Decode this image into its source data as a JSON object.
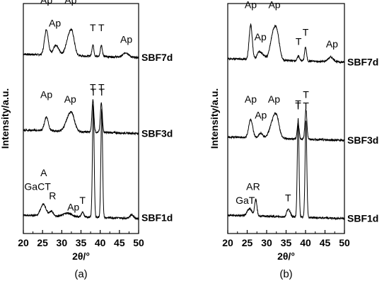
{
  "chart_data": [
    {
      "type": "line",
      "panel_label": "(a)",
      "xlabel": "2θ/°",
      "ylabel": "Intensity/a.u.",
      "xlim": [
        20,
        50
      ],
      "xticks": [
        "20",
        "25",
        "30",
        "35",
        "40",
        "45",
        "50"
      ],
      "grid": false,
      "series": [
        {
          "name": "SBF7d",
          "baseline": 0.78,
          "peaks": [
            [
              26.0,
              0.11,
              0.5
            ],
            [
              28.2,
              0.03,
              0.6
            ],
            [
              29.0,
              0.02,
              0.6
            ],
            [
              31.9,
              0.08,
              0.8
            ],
            [
              32.8,
              0.06,
              0.6
            ],
            [
              38.1,
              0.05,
              0.25
            ],
            [
              40.3,
              0.05,
              0.25
            ],
            [
              46.7,
              0.02,
              0.7
            ]
          ],
          "labels": [
            {
              "text": "Ap",
              "x": 26.0,
              "above": 0.22
            },
            {
              "text": "Ap",
              "x": 28.2,
              "above": 0.12
            },
            {
              "text": "Ap",
              "x": 32.3,
              "above": 0.22
            },
            {
              "text": "T",
              "x": 38.1,
              "above": 0.1
            },
            {
              "text": "T",
              "x": 40.3,
              "above": 0.1
            },
            {
              "text": "Ap",
              "x": 46.8,
              "above": 0.05
            }
          ]
        },
        {
          "name": "SBF3d",
          "baseline": 0.45,
          "peaks": [
            [
              26.0,
              0.06,
              0.5
            ],
            [
              31.9,
              0.06,
              0.9
            ],
            [
              32.8,
              0.04,
              0.7
            ],
            [
              38.1,
              0.14,
              0.25
            ],
            [
              40.3,
              0.13,
              0.25
            ]
          ],
          "labels": [
            {
              "text": "Ap",
              "x": 26.0,
              "above": 0.14
            },
            {
              "text": "Ap",
              "x": 32.2,
              "above": 0.12
            },
            {
              "text": "T",
              "x": 38.1,
              "above": 0.17
            },
            {
              "text": "T",
              "x": 40.3,
              "above": 0.17
            }
          ]
        },
        {
          "name": "SBF1d",
          "baseline": 0.08,
          "peaks": [
            [
              25.2,
              0.05,
              0.7
            ],
            [
              27.3,
              0.02,
              0.5
            ],
            [
              31.5,
              0.015,
              1.0
            ],
            [
              35.4,
              0.02,
              0.3
            ],
            [
              38.2,
              0.49,
              0.22
            ],
            [
              40.4,
              0.47,
              0.22
            ],
            [
              48.2,
              0.015,
              0.5
            ]
          ],
          "labels": [
            {
              "text": "A",
              "x": 25.3,
              "above": 0.17
            },
            {
              "text": "GaCT",
              "x": 23.7,
              "above": 0.11
            },
            {
              "text": "R",
              "x": 27.6,
              "above": 0.07
            },
            {
              "text": "Ap",
              "x": 33.0,
              "above": 0.02
            },
            {
              "text": "T",
              "x": 35.4,
              "above": 0.05
            },
            {
              "text": "T",
              "x": 38.2,
              "above": 0.52
            },
            {
              "text": "T",
              "x": 40.4,
              "above": 0.52
            }
          ]
        }
      ]
    },
    {
      "type": "line",
      "panel_label": "(b)",
      "xlabel": "2θ/°",
      "ylabel": "Intensity/a.u.",
      "xlim": [
        20,
        50
      ],
      "xticks": [
        "20",
        "25",
        "30",
        "35",
        "40",
        "45",
        "50"
      ],
      "grid": false,
      "series": [
        {
          "name": "SBF7d",
          "baseline": 0.76,
          "peaks": [
            [
              25.9,
              0.15,
              0.4
            ],
            [
              28.0,
              0.03,
              0.5
            ],
            [
              29.0,
              0.02,
              0.6
            ],
            [
              31.8,
              0.12,
              0.8
            ],
            [
              32.8,
              0.07,
              0.6
            ],
            [
              38.2,
              0.02,
              0.3
            ],
            [
              40.0,
              0.06,
              0.25
            ],
            [
              46.5,
              0.02,
              0.7
            ]
          ],
          "labels": [
            {
              "text": "Ap",
              "x": 25.9,
              "above": 0.22
            },
            {
              "text": "Ap",
              "x": 28.4,
              "above": 0.08
            },
            {
              "text": "Ap",
              "x": 32.0,
              "above": 0.22
            },
            {
              "text": "T",
              "x": 38.2,
              "above": 0.06
            },
            {
              "text": "T",
              "x": 40.0,
              "above": 0.1
            },
            {
              "text": "Ap",
              "x": 46.8,
              "above": 0.05
            }
          ]
        },
        {
          "name": "SBF3d",
          "baseline": 0.42,
          "peaks": [
            [
              25.9,
              0.08,
              0.5
            ],
            [
              28.5,
              0.02,
              0.5
            ],
            [
              31.8,
              0.08,
              0.9
            ],
            [
              32.7,
              0.05,
              0.6
            ],
            [
              38.1,
              0.07,
              0.25
            ],
            [
              40.1,
              0.13,
              0.25
            ]
          ],
          "labels": [
            {
              "text": "Ap",
              "x": 25.9,
              "above": 0.15
            },
            {
              "text": "Ap",
              "x": 28.5,
              "above": 0.08
            },
            {
              "text": "Ap",
              "x": 31.9,
              "above": 0.15
            },
            {
              "text": "T",
              "x": 38.1,
              "above": 0.13
            },
            {
              "text": "T",
              "x": 40.1,
              "above": 0.17
            }
          ]
        },
        {
          "name": "SBF1d",
          "baseline": 0.08,
          "peaks": [
            [
              25.6,
              0.03,
              0.6
            ],
            [
              27.2,
              0.07,
              0.3
            ],
            [
              35.4,
              0.03,
              0.3
            ],
            [
              36.0,
              0.02,
              0.3
            ],
            [
              38.1,
              0.43,
              0.22
            ],
            [
              40.1,
              0.42,
              0.22
            ]
          ],
          "labels": [
            {
              "text": "A",
              "x": 25.6,
              "above": 0.11
            },
            {
              "text": "R",
              "x": 27.4,
              "above": 0.11
            },
            {
              "text": "GaT",
              "x": 24.5,
              "above": 0.05
            },
            {
              "text": "T",
              "x": 35.5,
              "above": 0.06
            },
            {
              "text": "T",
              "x": 38.1,
              "above": 0.46
            },
            {
              "text": "T",
              "x": 40.1,
              "above": 0.46
            }
          ]
        }
      ]
    }
  ]
}
